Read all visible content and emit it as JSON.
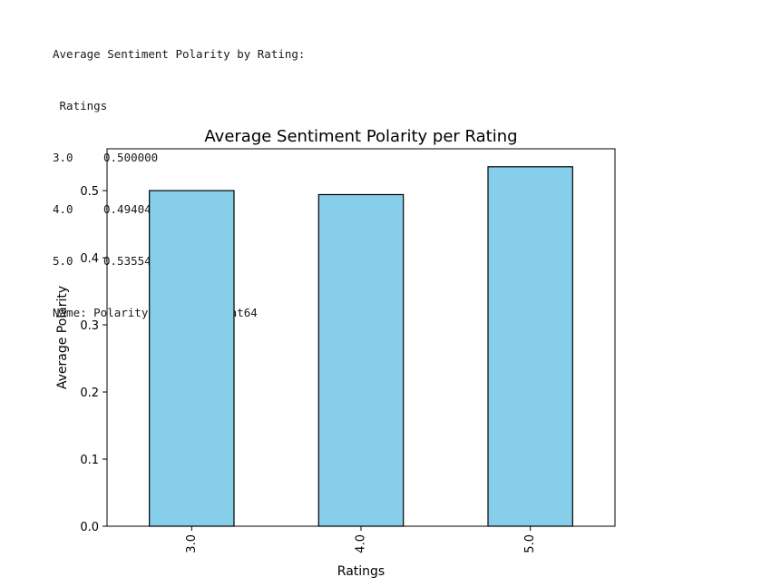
{
  "console": {
    "header": "Average Sentiment Polarity by Rating:",
    "index_name": " Ratings",
    "rows": [
      {
        "label": "3.0",
        "value": "0.500000"
      },
      {
        "label": "4.0",
        "value": "0.494048"
      },
      {
        "label": "5.0",
        "value": "0.535541"
      }
    ],
    "footer": "Name: Polarity, dtype: float64"
  },
  "chart_data": {
    "type": "bar",
    "title": "Average Sentiment Polarity per Rating",
    "xlabel": "Ratings",
    "ylabel": "Average Polarity",
    "categories": [
      "3.0",
      "4.0",
      "5.0"
    ],
    "values": [
      0.5,
      0.494048,
      0.535541
    ],
    "ylim": [
      0,
      0.5623
    ],
    "yticks": [
      0.0,
      0.1,
      0.2,
      0.3,
      0.4,
      0.5
    ],
    "ytick_labels": [
      "0.0",
      "0.1",
      "0.2",
      "0.3",
      "0.4",
      "0.5"
    ],
    "bar_color": "#87ceeb",
    "edge_color": "#000000",
    "grid": false,
    "legend": "none",
    "xtick_rotation": 90
  }
}
